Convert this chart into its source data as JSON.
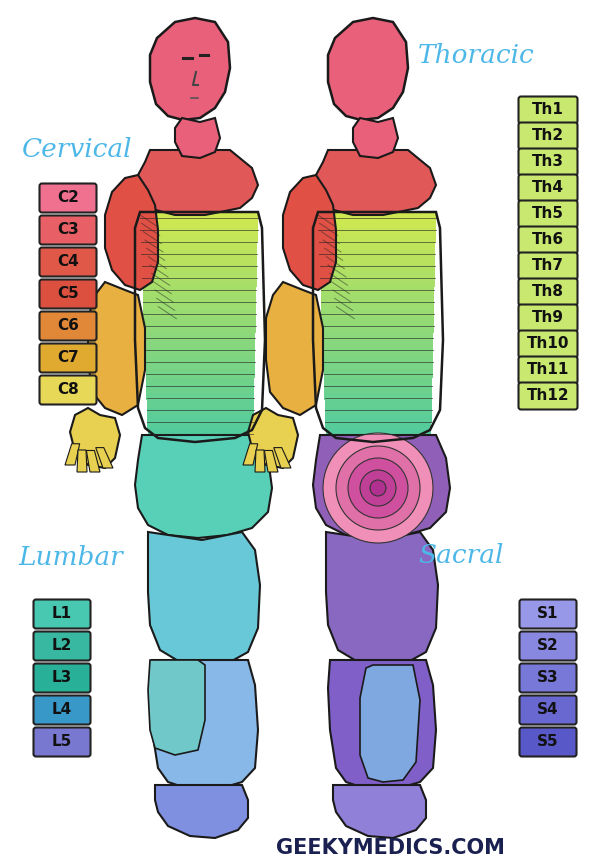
{
  "bg_color": "#ffffff",
  "cervical_title": "Cervical",
  "thoracic_title": "Thoracic",
  "lumbar_title": "Lumbar",
  "sacral_title": "Sacral",
  "cervical_labels": [
    "C2",
    "C3",
    "C4",
    "C5",
    "C6",
    "C7",
    "C8"
  ],
  "cervical_colors": [
    "#f07090",
    "#e86065",
    "#e05848",
    "#dc5040",
    "#e08838",
    "#e0aa30",
    "#e8d858"
  ],
  "thoracic_box_color": "#c8e870",
  "thoracic_labels": [
    "Th1",
    "Th2",
    "Th3",
    "Th4",
    "Th5",
    "Th6",
    "Th7",
    "Th8",
    "Th9",
    "Th10",
    "Th11",
    "Th12"
  ],
  "lumbar_labels": [
    "L1",
    "L2",
    "L3",
    "L4",
    "L5"
  ],
  "lumbar_colors": [
    "#48c8b0",
    "#38b8a0",
    "#28b098",
    "#3898c8",
    "#7878d0"
  ],
  "sacral_labels": [
    "S1",
    "S2",
    "S3",
    "S4",
    "S5"
  ],
  "sacral_colors": [
    "#9898e8",
    "#8888e0",
    "#7878d8",
    "#6868d0",
    "#5858c8"
  ],
  "title_color": "#4db8e8",
  "watermark": "GEEKYMEDICS.COM",
  "watermark_color": "#1a2050"
}
